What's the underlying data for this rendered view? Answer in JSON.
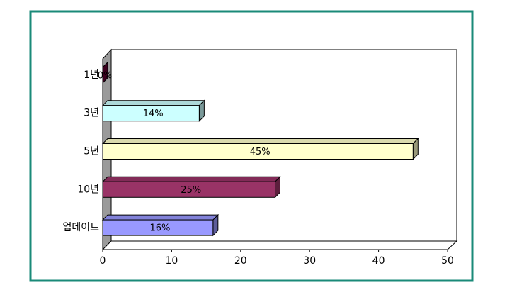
{
  "chart_data": {
    "type": "bar3d-horizontal",
    "categories": [
      "1년",
      "3년",
      "5년",
      "10년",
      "업데이트"
    ],
    "values": [
      0,
      14,
      45,
      25,
      16
    ],
    "value_labels": [
      "0%",
      "14%",
      "45%",
      "25%",
      "16%"
    ],
    "colors": [
      "#660033",
      "#ccffff",
      "#ffffcc",
      "#993366",
      "#9999ff"
    ],
    "xlim": [
      0,
      50
    ],
    "xticks": [
      0,
      10,
      20,
      30,
      40,
      50
    ]
  }
}
